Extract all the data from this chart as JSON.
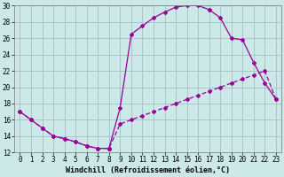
{
  "xlabel": "Windchill (Refroidissement éolien,°C)",
  "line_color": "#990099",
  "bg_color": "#cce8e8",
  "grid_color": "#99bbbb",
  "xlim": [
    -0.5,
    23.5
  ],
  "ylim": [
    12,
    30
  ],
  "yticks": [
    12,
    14,
    16,
    18,
    20,
    22,
    24,
    26,
    28,
    30
  ],
  "xticks": [
    0,
    1,
    2,
    3,
    4,
    5,
    6,
    7,
    8,
    9,
    10,
    11,
    12,
    13,
    14,
    15,
    16,
    17,
    18,
    19,
    20,
    21,
    22,
    23
  ],
  "tick_fontsize": 5.5,
  "xlabel_fontsize": 6,
  "markersize": 2.0,
  "linewidth": 0.9,
  "shared_x": [
    0,
    1,
    2,
    3,
    4,
    5,
    6,
    7,
    8
  ],
  "shared_y": [
    17,
    16,
    15,
    14,
    13.7,
    13.3,
    12.8,
    12.5,
    12.5
  ],
  "line1_x": [
    8,
    9,
    10,
    11,
    12,
    13,
    14,
    15,
    16,
    17
  ],
  "line1_y": [
    12.5,
    17.5,
    26.5,
    27.5,
    28.5,
    29.2,
    29.8,
    30.0,
    30.0,
    29.5
  ],
  "line2_x": [
    8,
    9,
    10,
    11,
    12,
    13,
    14,
    15,
    16,
    17,
    18,
    19,
    20,
    21,
    22,
    23
  ],
  "line2_y": [
    12.5,
    15.5,
    16.0,
    16.5,
    17.0,
    17.5,
    18.0,
    18.5,
    19.0,
    19.5,
    20.0,
    20.5,
    21.0,
    21.5,
    22.0,
    18.5
  ],
  "line3_x": [
    17,
    18,
    19,
    20,
    21,
    22,
    23
  ],
  "line3_y": [
    29.5,
    28.5,
    26.0,
    25.8,
    23.0,
    20.5,
    18.5
  ]
}
